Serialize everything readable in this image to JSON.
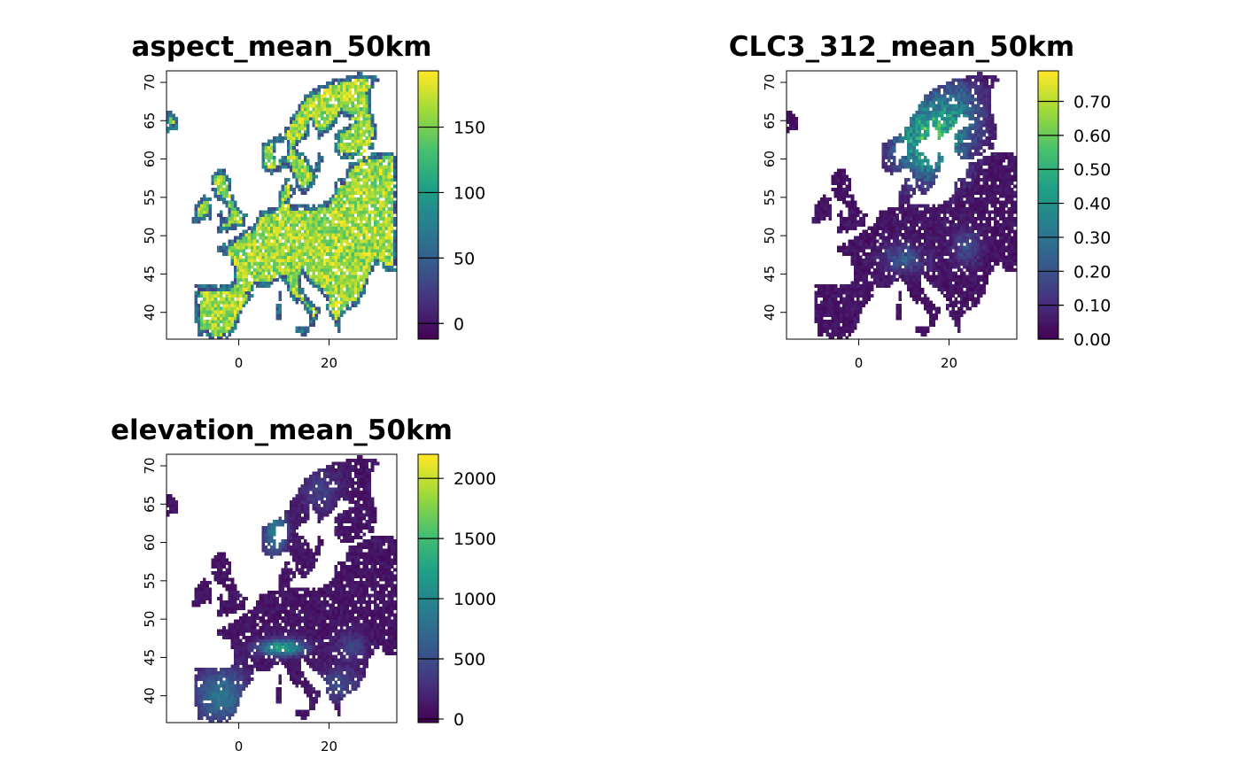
{
  "panels": [
    {
      "title": "aspect_mean_50km",
      "field": "aspect",
      "x_range": [
        -16,
        35
      ],
      "y_range": [
        36.5,
        71.5
      ],
      "x_ticks": [
        0,
        20
      ],
      "y_ticks": [
        40,
        45,
        50,
        55,
        60,
        65,
        70
      ],
      "legend_range": [
        -12,
        193
      ],
      "legend_ticks": [
        {
          "value": 0,
          "label": "0"
        },
        {
          "value": 50,
          "label": "50"
        },
        {
          "value": 100,
          "label": "100"
        },
        {
          "value": 150,
          "label": "150"
        }
      ]
    },
    {
      "title": "CLC3_312_mean_50km",
      "field": "clc",
      "x_range": [
        -16,
        35
      ],
      "y_range": [
        36.5,
        71.5
      ],
      "x_ticks": [
        0,
        20
      ],
      "y_ticks": [
        40,
        45,
        50,
        55,
        60,
        65,
        70
      ],
      "legend_range": [
        0,
        0.79
      ],
      "legend_ticks": [
        {
          "value": 0.0,
          "label": "0.00"
        },
        {
          "value": 0.1,
          "label": "0.10"
        },
        {
          "value": 0.2,
          "label": "0.20"
        },
        {
          "value": 0.3,
          "label": "0.30"
        },
        {
          "value": 0.4,
          "label": "0.40"
        },
        {
          "value": 0.5,
          "label": "0.50"
        },
        {
          "value": 0.6,
          "label": "0.60"
        },
        {
          "value": 0.7,
          "label": "0.70"
        }
      ]
    },
    {
      "title": "elevation_mean_50km",
      "field": "elevation",
      "x_range": [
        -16,
        35
      ],
      "y_range": [
        36.5,
        71.5
      ],
      "x_ticks": [
        0,
        20
      ],
      "y_ticks": [
        40,
        45,
        50,
        55,
        60,
        65,
        70
      ],
      "legend_range": [
        -30,
        2200
      ],
      "legend_ticks": [
        {
          "value": 0,
          "label": "0"
        },
        {
          "value": 500,
          "label": "500"
        },
        {
          "value": 1000,
          "label": "1000"
        },
        {
          "value": 1500,
          "label": "1500"
        },
        {
          "value": 2000,
          "label": "2000"
        }
      ]
    }
  ],
  "colormap": "viridis",
  "colors": {
    "viridis": [
      "#440154",
      "#46327e",
      "#365c8d",
      "#277f8e",
      "#1fa187",
      "#4ac16d",
      "#a0da39",
      "#fde725"
    ],
    "background": "#ffffff",
    "frame": "#000000"
  }
}
